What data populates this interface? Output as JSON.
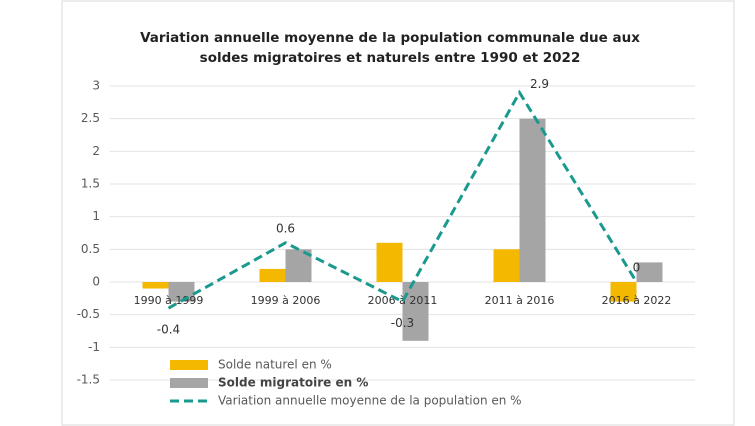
{
  "chart_data": {
    "type": "bar_line",
    "title": "Variation annuelle moyenne de la population communale due aux",
    "subtitle": "soldes migratoires et naturels entre 1990 et 2022",
    "categories": [
      "1990 à 1999",
      "1999 à 2006",
      "2006 à 2011",
      "2011 à 2016",
      "2016 à 2022"
    ],
    "series": [
      {
        "name": "Solde naturel en %",
        "color": "#f5b800",
        "kind": "bar",
        "values": [
          -0.1,
          0.2,
          0.6,
          0.5,
          -0.3
        ]
      },
      {
        "name": "Solde migratoire en %",
        "color": "#a5a5a5",
        "kind": "bar",
        "values": [
          -0.3,
          0.5,
          -0.9,
          2.5,
          0.3
        ]
      },
      {
        "name": "Variation annuelle moyenne de la population en %",
        "color": "#1a9a8f",
        "kind": "line",
        "values": [
          -0.4,
          0.6,
          -0.3,
          2.9,
          0
        ]
      }
    ],
    "ylim": [
      -1.5,
      3
    ],
    "yticks": [
      -1.5,
      -1,
      -0.5,
      0,
      0.5,
      1,
      1.5,
      2,
      2.5,
      3
    ],
    "grid": true
  }
}
